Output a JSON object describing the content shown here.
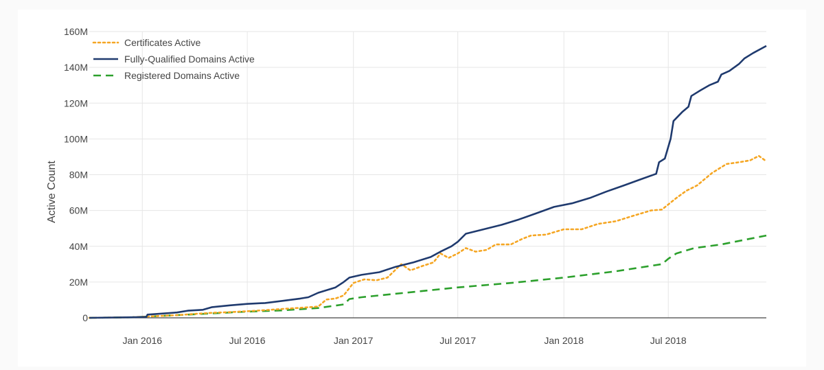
{
  "chart_data": {
    "type": "line",
    "title": "",
    "xlabel": "",
    "ylabel": "Active Count",
    "x_range": [
      "2015-10-01",
      "2018-12-18"
    ],
    "ylim": [
      0,
      160000000
    ],
    "x_ticks": [
      {
        "date": "2016-01-01",
        "label": "Jan 2016"
      },
      {
        "date": "2016-07-01",
        "label": "Jul 2016"
      },
      {
        "date": "2017-01-01",
        "label": "Jan 2017"
      },
      {
        "date": "2017-07-01",
        "label": "Jul 2017"
      },
      {
        "date": "2018-01-01",
        "label": "Jan 2018"
      },
      {
        "date": "2018-07-01",
        "label": "Jul 2018"
      }
    ],
    "y_ticks": [
      {
        "value": 0,
        "label": "0"
      },
      {
        "value": 20000000,
        "label": "20M"
      },
      {
        "value": 40000000,
        "label": "40M"
      },
      {
        "value": 60000000,
        "label": "60M"
      },
      {
        "value": 80000000,
        "label": "80M"
      },
      {
        "value": 100000000,
        "label": "100M"
      },
      {
        "value": 120000000,
        "label": "120M"
      },
      {
        "value": 140000000,
        "label": "140M"
      },
      {
        "value": 160000000,
        "label": "160M"
      }
    ],
    "grid": true,
    "legend_position": "top-left",
    "series": [
      {
        "name": "Certificates Active",
        "color": "#f5a623",
        "style": "dotted",
        "points": [
          [
            "2015-10-01",
            0
          ],
          [
            "2015-12-15",
            300000
          ],
          [
            "2016-01-15",
            800000
          ],
          [
            "2016-03-01",
            1500000
          ],
          [
            "2016-04-01",
            2200000
          ],
          [
            "2016-05-01",
            2800000
          ],
          [
            "2016-06-01",
            3200000
          ],
          [
            "2016-07-01",
            3700000
          ],
          [
            "2016-08-01",
            4300000
          ],
          [
            "2016-09-01",
            5000000
          ],
          [
            "2016-10-01",
            5600000
          ],
          [
            "2016-11-01",
            6300000
          ],
          [
            "2016-11-15",
            10200000
          ],
          [
            "2016-12-01",
            10800000
          ],
          [
            "2016-12-15",
            12500000
          ],
          [
            "2017-01-01",
            19500000
          ],
          [
            "2017-01-20",
            21500000
          ],
          [
            "2017-02-10",
            21000000
          ],
          [
            "2017-03-01",
            22500000
          ],
          [
            "2017-03-25",
            30000000
          ],
          [
            "2017-04-10",
            26500000
          ],
          [
            "2017-05-01",
            29000000
          ],
          [
            "2017-05-20",
            31000000
          ],
          [
            "2017-06-01",
            36000000
          ],
          [
            "2017-06-15",
            33500000
          ],
          [
            "2017-07-01",
            36000000
          ],
          [
            "2017-07-15",
            39000000
          ],
          [
            "2017-08-01",
            37000000
          ],
          [
            "2017-08-20",
            38000000
          ],
          [
            "2017-09-05",
            41000000
          ],
          [
            "2017-10-01",
            41000000
          ],
          [
            "2017-10-20",
            44000000
          ],
          [
            "2017-11-05",
            46000000
          ],
          [
            "2017-12-01",
            46500000
          ],
          [
            "2018-01-01",
            49500000
          ],
          [
            "2018-02-01",
            49500000
          ],
          [
            "2018-03-01",
            52500000
          ],
          [
            "2018-04-01",
            54000000
          ],
          [
            "2018-05-01",
            57000000
          ],
          [
            "2018-06-01",
            60000000
          ],
          [
            "2018-06-20",
            60500000
          ],
          [
            "2018-07-15",
            67000000
          ],
          [
            "2018-08-01",
            71000000
          ],
          [
            "2018-08-20",
            74000000
          ],
          [
            "2018-09-15",
            81000000
          ],
          [
            "2018-10-10",
            86000000
          ],
          [
            "2018-11-01",
            87000000
          ],
          [
            "2018-11-20",
            88000000
          ],
          [
            "2018-12-05",
            90500000
          ],
          [
            "2018-12-18",
            87500000
          ]
        ]
      },
      {
        "name": "Fully-Qualified Domains Active",
        "color": "#1f3a6e",
        "style": "solid",
        "points": [
          [
            "2015-10-01",
            0
          ],
          [
            "2015-12-15",
            300000
          ],
          [
            "2016-01-08",
            500000
          ],
          [
            "2016-01-10",
            1800000
          ],
          [
            "2016-03-01",
            3000000
          ],
          [
            "2016-03-20",
            4000000
          ],
          [
            "2016-04-15",
            4500000
          ],
          [
            "2016-05-01",
            6000000
          ],
          [
            "2016-06-01",
            7000000
          ],
          [
            "2016-07-01",
            7800000
          ],
          [
            "2016-08-01",
            8300000
          ],
          [
            "2016-09-01",
            9500000
          ],
          [
            "2016-10-01",
            10800000
          ],
          [
            "2016-10-15",
            11500000
          ],
          [
            "2016-11-01",
            14000000
          ],
          [
            "2016-12-01",
            17000000
          ],
          [
            "2016-12-15",
            20000000
          ],
          [
            "2016-12-25",
            22500000
          ],
          [
            "2017-01-15",
            24000000
          ],
          [
            "2017-02-15",
            25500000
          ],
          [
            "2017-03-15",
            28500000
          ],
          [
            "2017-04-15",
            31000000
          ],
          [
            "2017-05-15",
            34000000
          ],
          [
            "2017-06-01",
            37000000
          ],
          [
            "2017-06-20",
            40000000
          ],
          [
            "2017-07-01",
            42500000
          ],
          [
            "2017-07-15",
            47000000
          ],
          [
            "2017-08-15",
            49500000
          ],
          [
            "2017-09-15",
            52000000
          ],
          [
            "2017-10-15",
            55000000
          ],
          [
            "2017-11-15",
            58500000
          ],
          [
            "2017-12-15",
            62000000
          ],
          [
            "2018-01-15",
            64000000
          ],
          [
            "2018-02-15",
            67000000
          ],
          [
            "2018-03-15",
            70500000
          ],
          [
            "2018-04-15",
            74000000
          ],
          [
            "2018-05-15",
            77500000
          ],
          [
            "2018-06-10",
            80500000
          ],
          [
            "2018-06-15",
            87000000
          ],
          [
            "2018-06-25",
            89000000
          ],
          [
            "2018-07-05",
            100000000
          ],
          [
            "2018-07-10",
            110000000
          ],
          [
            "2018-07-25",
            115000000
          ],
          [
            "2018-08-05",
            118000000
          ],
          [
            "2018-08-10",
            124000000
          ],
          [
            "2018-08-25",
            127000000
          ],
          [
            "2018-09-10",
            130000000
          ],
          [
            "2018-09-25",
            132000000
          ],
          [
            "2018-10-01",
            136000000
          ],
          [
            "2018-10-15",
            138000000
          ],
          [
            "2018-11-01",
            142000000
          ],
          [
            "2018-11-10",
            145000000
          ],
          [
            "2018-11-25",
            148000000
          ],
          [
            "2018-12-18",
            152000000
          ]
        ]
      },
      {
        "name": "Registered Domains Active",
        "color": "#2ca02c",
        "style": "dashed",
        "points": [
          [
            "2015-10-01",
            0
          ],
          [
            "2015-12-15",
            300000
          ],
          [
            "2016-03-01",
            1500000
          ],
          [
            "2016-05-01",
            2500000
          ],
          [
            "2016-07-01",
            3500000
          ],
          [
            "2016-09-01",
            4200000
          ],
          [
            "2016-11-01",
            5500000
          ],
          [
            "2016-12-15",
            7500000
          ],
          [
            "2016-12-25",
            10500000
          ],
          [
            "2017-01-15",
            11500000
          ],
          [
            "2017-04-01",
            14000000
          ],
          [
            "2017-07-01",
            17000000
          ],
          [
            "2017-10-01",
            19500000
          ],
          [
            "2018-01-01",
            22500000
          ],
          [
            "2018-04-01",
            26000000
          ],
          [
            "2018-06-20",
            30000000
          ],
          [
            "2018-07-01",
            33000000
          ],
          [
            "2018-07-15",
            36000000
          ],
          [
            "2018-08-15",
            39000000
          ],
          [
            "2018-10-01",
            41000000
          ],
          [
            "2018-12-18",
            46000000
          ]
        ]
      }
    ]
  }
}
